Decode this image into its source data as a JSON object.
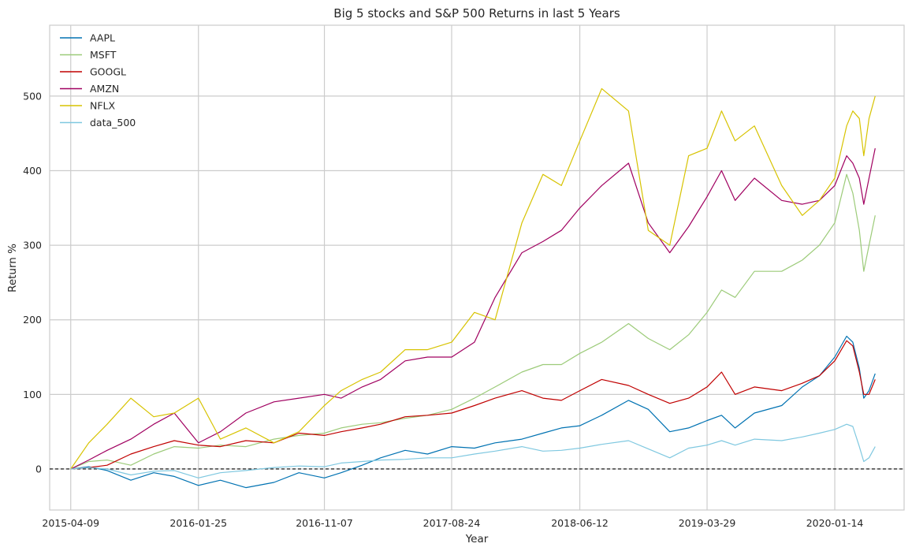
{
  "chart_data": {
    "type": "line",
    "title": "Big 5 stocks and S&P 500 Returns in last 5 Years",
    "xlabel": "Year",
    "ylabel": "Return %",
    "x_tick_labels": [
      "2015-04-09",
      "2016-01-25",
      "2016-11-07",
      "2017-08-24",
      "2018-06-12",
      "2019-03-29",
      "2020-01-14"
    ],
    "y_ticks": [
      0,
      100,
      200,
      300,
      400,
      500
    ],
    "xlim": [
      "2015-02-20",
      "2020-06-20"
    ],
    "ylim": [
      -55,
      595
    ],
    "grid": true,
    "legend_position": "top-left",
    "reference_line": {
      "y": 0,
      "style": "dashed",
      "color": "#000000"
    },
    "series": [
      {
        "name": "AAPL",
        "color": "#0072b2",
        "points": [
          [
            "2015-04-09",
            0
          ],
          [
            "2015-05-20",
            3
          ],
          [
            "2015-07-01",
            -2
          ],
          [
            "2015-08-24",
            -15
          ],
          [
            "2015-10-15",
            -5
          ],
          [
            "2015-12-01",
            -10
          ],
          [
            "2016-01-25",
            -22
          ],
          [
            "2016-03-15",
            -15
          ],
          [
            "2016-05-12",
            -25
          ],
          [
            "2016-07-15",
            -18
          ],
          [
            "2016-09-10",
            -5
          ],
          [
            "2016-11-07",
            -12
          ],
          [
            "2016-12-15",
            -5
          ],
          [
            "2017-02-01",
            5
          ],
          [
            "2017-03-15",
            15
          ],
          [
            "2017-05-10",
            25
          ],
          [
            "2017-06-30",
            20
          ],
          [
            "2017-08-24",
            30
          ],
          [
            "2017-10-15",
            28
          ],
          [
            "2017-12-01",
            35
          ],
          [
            "2018-01-31",
            40
          ],
          [
            "2018-03-20",
            48
          ],
          [
            "2018-05-01",
            55
          ],
          [
            "2018-06-12",
            58
          ],
          [
            "2018-08-01",
            72
          ],
          [
            "2018-10-01",
            92
          ],
          [
            "2018-11-15",
            80
          ],
          [
            "2019-01-03",
            50
          ],
          [
            "2019-02-15",
            55
          ],
          [
            "2019-03-29",
            65
          ],
          [
            "2019-05-01",
            72
          ],
          [
            "2019-06-01",
            55
          ],
          [
            "2019-07-15",
            75
          ],
          [
            "2019-09-15",
            85
          ],
          [
            "2019-11-01",
            110
          ],
          [
            "2019-12-10",
            125
          ],
          [
            "2020-01-14",
            150
          ],
          [
            "2020-02-10",
            178
          ],
          [
            "2020-02-24",
            170
          ],
          [
            "2020-03-10",
            135
          ],
          [
            "2020-03-20",
            95
          ],
          [
            "2020-04-01",
            105
          ],
          [
            "2020-04-15",
            128
          ]
        ]
      },
      {
        "name": "MSFT",
        "color": "#9ccb79",
        "points": [
          [
            "2015-04-09",
            0
          ],
          [
            "2015-05-20",
            10
          ],
          [
            "2015-07-01",
            12
          ],
          [
            "2015-08-24",
            5
          ],
          [
            "2015-10-15",
            20
          ],
          [
            "2015-12-01",
            30
          ],
          [
            "2016-01-25",
            28
          ],
          [
            "2016-03-15",
            32
          ],
          [
            "2016-05-12",
            30
          ],
          [
            "2016-07-15",
            40
          ],
          [
            "2016-09-10",
            45
          ],
          [
            "2016-11-07",
            48
          ],
          [
            "2016-12-15",
            55
          ],
          [
            "2017-02-01",
            60
          ],
          [
            "2017-03-15",
            62
          ],
          [
            "2017-05-10",
            68
          ],
          [
            "2017-06-30",
            72
          ],
          [
            "2017-08-24",
            80
          ],
          [
            "2017-10-15",
            95
          ],
          [
            "2017-12-01",
            110
          ],
          [
            "2018-01-31",
            130
          ],
          [
            "2018-03-20",
            140
          ],
          [
            "2018-05-01",
            140
          ],
          [
            "2018-06-12",
            155
          ],
          [
            "2018-08-01",
            170
          ],
          [
            "2018-10-01",
            195
          ],
          [
            "2018-11-15",
            175
          ],
          [
            "2019-01-03",
            160
          ],
          [
            "2019-02-15",
            180
          ],
          [
            "2019-03-29",
            210
          ],
          [
            "2019-05-01",
            240
          ],
          [
            "2019-06-01",
            230
          ],
          [
            "2019-07-15",
            265
          ],
          [
            "2019-09-15",
            265
          ],
          [
            "2019-11-01",
            280
          ],
          [
            "2019-12-10",
            300
          ],
          [
            "2020-01-14",
            330
          ],
          [
            "2020-02-10",
            395
          ],
          [
            "2020-02-24",
            370
          ],
          [
            "2020-03-10",
            320
          ],
          [
            "2020-03-20",
            265
          ],
          [
            "2020-04-01",
            300
          ],
          [
            "2020-04-15",
            340
          ]
        ]
      },
      {
        "name": "GOOGL",
        "color": "#c00000",
        "points": [
          [
            "2015-04-09",
            0
          ],
          [
            "2015-05-20",
            2
          ],
          [
            "2015-07-01",
            5
          ],
          [
            "2015-08-24",
            20
          ],
          [
            "2015-10-15",
            30
          ],
          [
            "2015-12-01",
            38
          ],
          [
            "2016-01-25",
            32
          ],
          [
            "2016-03-15",
            30
          ],
          [
            "2016-05-12",
            38
          ],
          [
            "2016-07-15",
            35
          ],
          [
            "2016-09-10",
            48
          ],
          [
            "2016-11-07",
            45
          ],
          [
            "2016-12-15",
            50
          ],
          [
            "2017-02-01",
            55
          ],
          [
            "2017-03-15",
            60
          ],
          [
            "2017-05-10",
            70
          ],
          [
            "2017-06-30",
            72
          ],
          [
            "2017-08-24",
            75
          ],
          [
            "2017-10-15",
            85
          ],
          [
            "2017-12-01",
            95
          ],
          [
            "2018-01-31",
            105
          ],
          [
            "2018-03-20",
            95
          ],
          [
            "2018-05-01",
            92
          ],
          [
            "2018-06-12",
            105
          ],
          [
            "2018-08-01",
            120
          ],
          [
            "2018-10-01",
            112
          ],
          [
            "2018-11-15",
            100
          ],
          [
            "2019-01-03",
            88
          ],
          [
            "2019-02-15",
            95
          ],
          [
            "2019-03-29",
            110
          ],
          [
            "2019-05-01",
            130
          ],
          [
            "2019-06-01",
            100
          ],
          [
            "2019-07-15",
            110
          ],
          [
            "2019-09-15",
            105
          ],
          [
            "2019-11-01",
            115
          ],
          [
            "2019-12-10",
            125
          ],
          [
            "2020-01-14",
            145
          ],
          [
            "2020-02-10",
            172
          ],
          [
            "2020-02-24",
            165
          ],
          [
            "2020-03-10",
            130
          ],
          [
            "2020-03-20",
            100
          ],
          [
            "2020-04-01",
            100
          ],
          [
            "2020-04-15",
            120
          ]
        ]
      },
      {
        "name": "AMZN",
        "color": "#a00060",
        "points": [
          [
            "2015-04-09",
            0
          ],
          [
            "2015-05-20",
            12
          ],
          [
            "2015-07-01",
            25
          ],
          [
            "2015-08-24",
            40
          ],
          [
            "2015-10-15",
            60
          ],
          [
            "2015-12-01",
            75
          ],
          [
            "2016-01-25",
            35
          ],
          [
            "2016-03-15",
            50
          ],
          [
            "2016-05-12",
            75
          ],
          [
            "2016-07-15",
            90
          ],
          [
            "2016-09-10",
            95
          ],
          [
            "2016-11-07",
            100
          ],
          [
            "2016-12-15",
            95
          ],
          [
            "2017-02-01",
            110
          ],
          [
            "2017-03-15",
            120
          ],
          [
            "2017-05-10",
            145
          ],
          [
            "2017-06-30",
            150
          ],
          [
            "2017-08-24",
            150
          ],
          [
            "2017-10-15",
            170
          ],
          [
            "2017-12-01",
            230
          ],
          [
            "2018-01-31",
            290
          ],
          [
            "2018-03-20",
            305
          ],
          [
            "2018-05-01",
            320
          ],
          [
            "2018-06-12",
            350
          ],
          [
            "2018-08-01",
            380
          ],
          [
            "2018-10-01",
            410
          ],
          [
            "2018-11-15",
            330
          ],
          [
            "2019-01-03",
            290
          ],
          [
            "2019-02-15",
            325
          ],
          [
            "2019-03-29",
            365
          ],
          [
            "2019-05-01",
            400
          ],
          [
            "2019-06-01",
            360
          ],
          [
            "2019-07-15",
            390
          ],
          [
            "2019-09-15",
            360
          ],
          [
            "2019-11-01",
            355
          ],
          [
            "2019-12-10",
            360
          ],
          [
            "2020-01-14",
            380
          ],
          [
            "2020-02-10",
            420
          ],
          [
            "2020-02-24",
            410
          ],
          [
            "2020-03-10",
            390
          ],
          [
            "2020-03-20",
            355
          ],
          [
            "2020-04-01",
            390
          ],
          [
            "2020-04-15",
            430
          ]
        ]
      },
      {
        "name": "NFLX",
        "color": "#d7c300",
        "points": [
          [
            "2015-04-09",
            0
          ],
          [
            "2015-05-20",
            35
          ],
          [
            "2015-07-01",
            60
          ],
          [
            "2015-08-24",
            95
          ],
          [
            "2015-10-15",
            70
          ],
          [
            "2015-12-01",
            75
          ],
          [
            "2016-01-25",
            95
          ],
          [
            "2016-03-15",
            40
          ],
          [
            "2016-05-12",
            55
          ],
          [
            "2016-07-15",
            35
          ],
          [
            "2016-09-10",
            50
          ],
          [
            "2016-11-07",
            85
          ],
          [
            "2016-12-15",
            105
          ],
          [
            "2017-02-01",
            120
          ],
          [
            "2017-03-15",
            130
          ],
          [
            "2017-05-10",
            160
          ],
          [
            "2017-06-30",
            160
          ],
          [
            "2017-08-24",
            170
          ],
          [
            "2017-10-15",
            210
          ],
          [
            "2017-12-01",
            200
          ],
          [
            "2018-01-31",
            330
          ],
          [
            "2018-03-20",
            395
          ],
          [
            "2018-05-01",
            380
          ],
          [
            "2018-06-12",
            440
          ],
          [
            "2018-08-01",
            510
          ],
          [
            "2018-10-01",
            480
          ],
          [
            "2018-11-15",
            320
          ],
          [
            "2019-01-03",
            300
          ],
          [
            "2019-02-15",
            420
          ],
          [
            "2019-03-29",
            430
          ],
          [
            "2019-05-01",
            480
          ],
          [
            "2019-06-01",
            440
          ],
          [
            "2019-07-15",
            460
          ],
          [
            "2019-09-15",
            380
          ],
          [
            "2019-11-01",
            340
          ],
          [
            "2019-12-10",
            360
          ],
          [
            "2020-01-14",
            390
          ],
          [
            "2020-02-10",
            460
          ],
          [
            "2020-02-24",
            480
          ],
          [
            "2020-03-10",
            470
          ],
          [
            "2020-03-20",
            420
          ],
          [
            "2020-04-01",
            470
          ],
          [
            "2020-04-15",
            500
          ]
        ]
      },
      {
        "name": "data_500",
        "color": "#7fc8e0",
        "points": [
          [
            "2015-04-09",
            0
          ],
          [
            "2015-05-20",
            2
          ],
          [
            "2015-07-01",
            0
          ],
          [
            "2015-08-24",
            -8
          ],
          [
            "2015-10-15",
            -3
          ],
          [
            "2015-12-01",
            -2
          ],
          [
            "2016-01-25",
            -12
          ],
          [
            "2016-03-15",
            -5
          ],
          [
            "2016-05-12",
            -2
          ],
          [
            "2016-07-15",
            2
          ],
          [
            "2016-09-10",
            4
          ],
          [
            "2016-11-07",
            3
          ],
          [
            "2016-12-15",
            8
          ],
          [
            "2017-02-01",
            10
          ],
          [
            "2017-03-15",
            12
          ],
          [
            "2017-05-10",
            13
          ],
          [
            "2017-06-30",
            15
          ],
          [
            "2017-08-24",
            15
          ],
          [
            "2017-10-15",
            20
          ],
          [
            "2017-12-01",
            24
          ],
          [
            "2018-01-31",
            30
          ],
          [
            "2018-03-20",
            24
          ],
          [
            "2018-05-01",
            25
          ],
          [
            "2018-06-12",
            28
          ],
          [
            "2018-08-01",
            33
          ],
          [
            "2018-10-01",
            38
          ],
          [
            "2018-11-15",
            27
          ],
          [
            "2019-01-03",
            15
          ],
          [
            "2019-02-15",
            28
          ],
          [
            "2019-03-29",
            32
          ],
          [
            "2019-05-01",
            38
          ],
          [
            "2019-06-01",
            32
          ],
          [
            "2019-07-15",
            40
          ],
          [
            "2019-09-15",
            38
          ],
          [
            "2019-11-01",
            43
          ],
          [
            "2019-12-10",
            48
          ],
          [
            "2020-01-14",
            53
          ],
          [
            "2020-02-10",
            60
          ],
          [
            "2020-02-24",
            57
          ],
          [
            "2020-03-10",
            30
          ],
          [
            "2020-03-20",
            10
          ],
          [
            "2020-04-01",
            15
          ],
          [
            "2020-04-15",
            30
          ]
        ]
      }
    ]
  }
}
